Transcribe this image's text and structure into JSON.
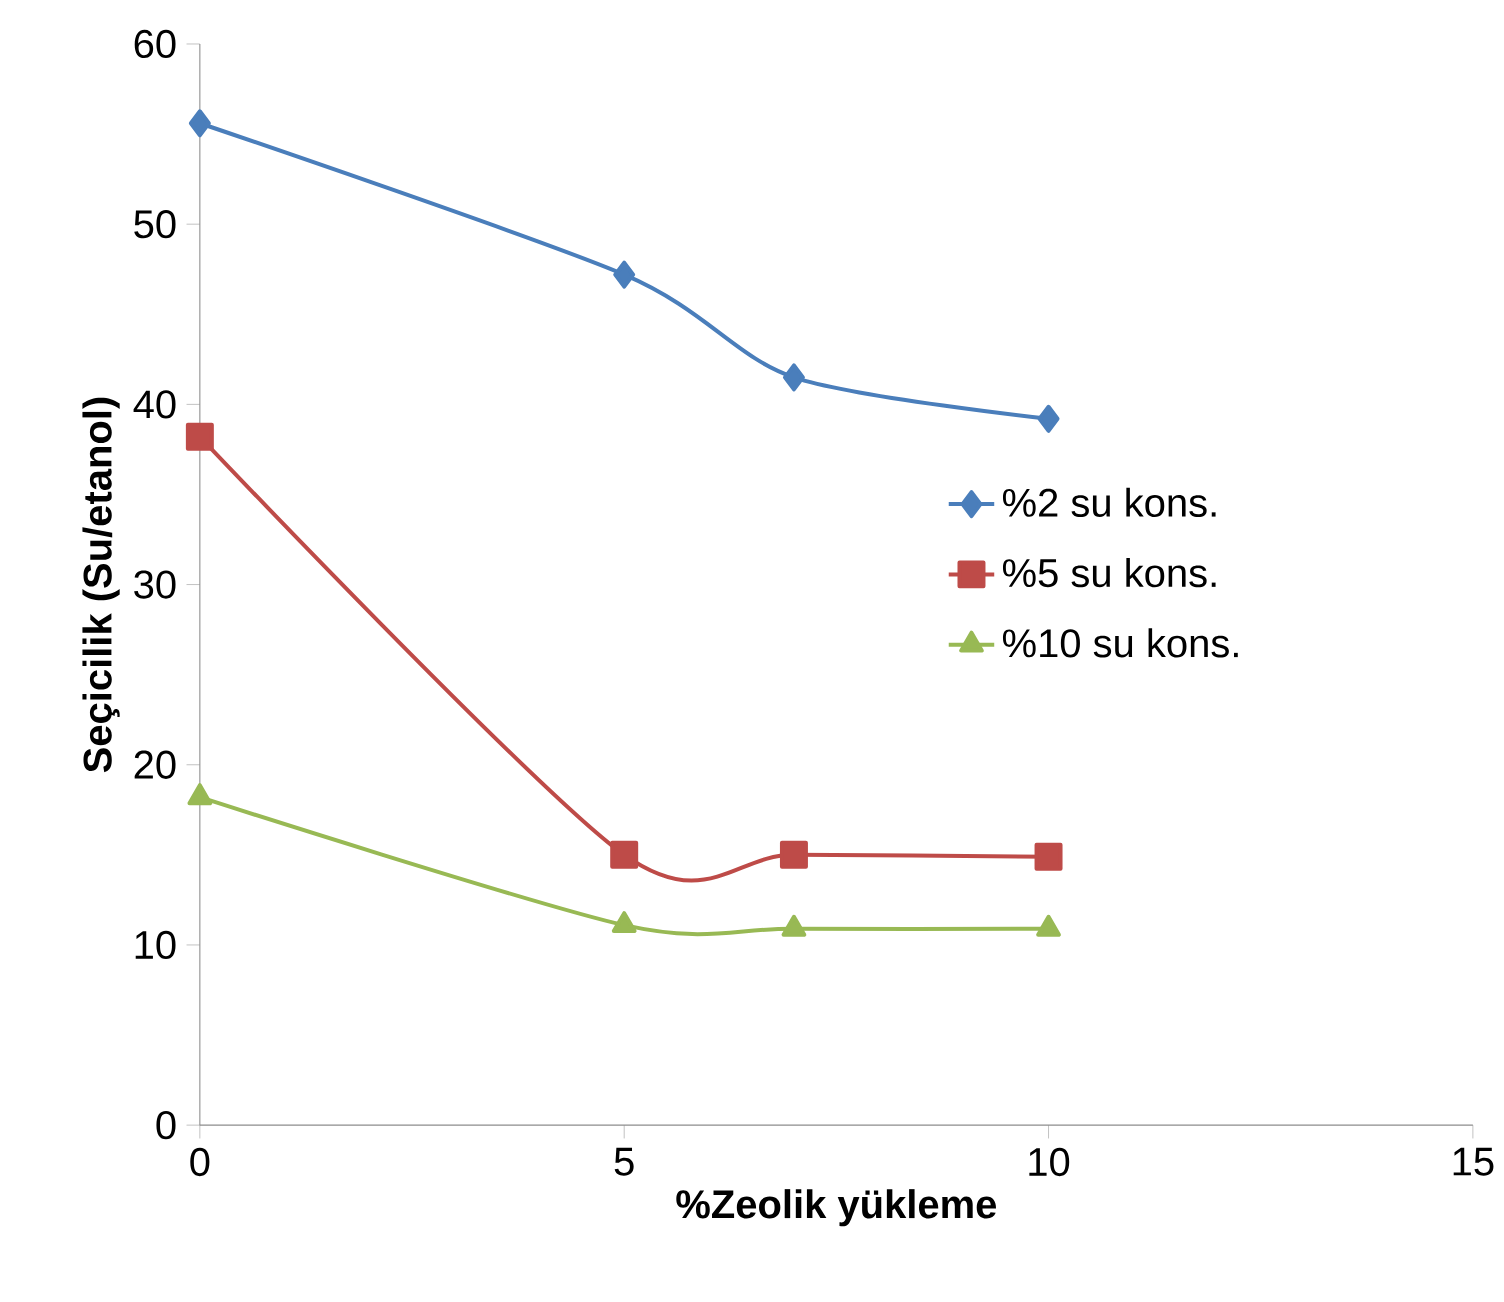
{
  "chart_data": {
    "type": "line",
    "xlabel": "%Zeolik yükleme",
    "ylabel": "Seçicilik (Su/etanol)",
    "x": [
      0,
      5,
      7,
      10
    ],
    "series": [
      {
        "name": "%2 su kons.",
        "color": "#4a7ebb",
        "marker": "diamond",
        "values": [
          55.6,
          47.2,
          41.5,
          39.2
        ]
      },
      {
        "name": "%5 su kons.",
        "color": "#be4b48",
        "marker": "square",
        "values": [
          38.2,
          15.0,
          15.0,
          14.9
        ]
      },
      {
        "name": "%10 su kons.",
        "color": "#98b954",
        "marker": "triangle",
        "values": [
          18.2,
          11.1,
          10.9,
          10.9
        ]
      }
    ],
    "xlim": [
      0,
      15
    ],
    "xticks": [
      0,
      5,
      10,
      15
    ],
    "ylim": [
      0,
      60
    ],
    "yticks": [
      0,
      10,
      20,
      30,
      40,
      50,
      60
    ],
    "grid": false,
    "legend": "center right",
    "line_style": "solid"
  }
}
